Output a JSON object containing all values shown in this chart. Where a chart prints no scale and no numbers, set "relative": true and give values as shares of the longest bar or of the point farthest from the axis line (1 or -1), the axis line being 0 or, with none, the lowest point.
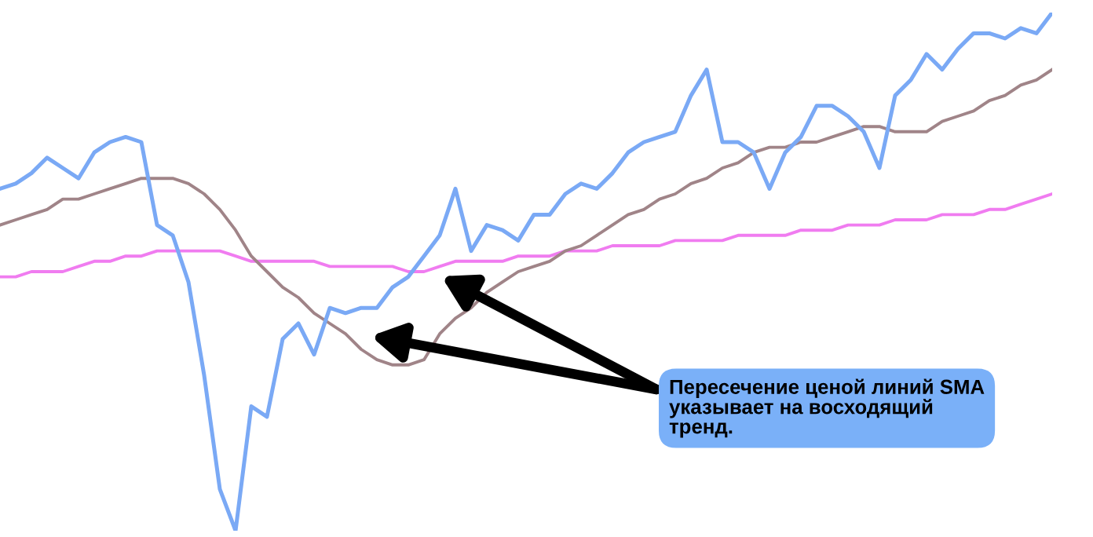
{
  "chart_data": {
    "type": "line",
    "relative": true,
    "categories": [
      null,
      null,
      null,
      null,
      null,
      null,
      null,
      null,
      null,
      null,
      null,
      null,
      null,
      null,
      null,
      null,
      null,
      null,
      null,
      null,
      null,
      null,
      null,
      null,
      null,
      null,
      null,
      null,
      null,
      null,
      null,
      null,
      null,
      null,
      null,
      null,
      null,
      null,
      null,
      null,
      null,
      null,
      null,
      null,
      null,
      null,
      null,
      null,
      null,
      null,
      null,
      null,
      null,
      null,
      null,
      null,
      null,
      null,
      null,
      null,
      null,
      null,
      null,
      null,
      null,
      null,
      null,
      null
    ],
    "series": [
      {
        "color": "#7aa9f5",
        "values": [
          0.66,
          0.67,
          0.69,
          0.72,
          0.7,
          0.68,
          0.73,
          0.75,
          0.76,
          0.75,
          0.59,
          0.57,
          0.48,
          0.3,
          0.08,
          0,
          0.24,
          0.22,
          0.37,
          0.4,
          0.34,
          0.43,
          0.42,
          0.43,
          0.43,
          0.47,
          0.49,
          0.53,
          0.57,
          0.66,
          0.54,
          0.59,
          0.58,
          0.56,
          0.61,
          0.61,
          0.65,
          0.67,
          0.66,
          0.69,
          0.73,
          0.75,
          0.76,
          0.77,
          0.84,
          0.89,
          0.75,
          0.75,
          0.73,
          0.66,
          0.73,
          0.76,
          0.82,
          0.82,
          0.8,
          0.77,
          0.7,
          0.84,
          0.87,
          0.92,
          0.89,
          0.93,
          0.96,
          0.96,
          0.95,
          0.97,
          0.96,
          1
        ]
      },
      {
        "color": "#a08488",
        "values": [
          0.59,
          0.6,
          0.61,
          0.62,
          0.64,
          0.64,
          0.65,
          0.66,
          0.67,
          0.68,
          0.68,
          0.68,
          0.67,
          0.65,
          0.62,
          0.58,
          0.53,
          0.5,
          0.47,
          0.45,
          0.42,
          0.4,
          0.38,
          0.35,
          0.33,
          0.32,
          0.32,
          0.33,
          0.38,
          0.41,
          0.43,
          0.46,
          0.48,
          0.5,
          0.51,
          0.52,
          0.54,
          0.55,
          0.57,
          0.59,
          0.61,
          0.62,
          0.64,
          0.65,
          0.67,
          0.68,
          0.7,
          0.71,
          0.73,
          0.74,
          0.74,
          0.75,
          0.75,
          0.76,
          0.77,
          0.78,
          0.78,
          0.77,
          0.77,
          0.77,
          0.79,
          0.8,
          0.81,
          0.83,
          0.84,
          0.86,
          0.87,
          0.89
        ]
      },
      {
        "color": "#f07cf0",
        "values": [
          0.49,
          0.49,
          0.5,
          0.5,
          0.5,
          0.51,
          0.52,
          0.52,
          0.53,
          0.53,
          0.54,
          0.54,
          0.54,
          0.54,
          0.54,
          0.53,
          0.52,
          0.52,
          0.52,
          0.52,
          0.52,
          0.51,
          0.51,
          0.51,
          0.51,
          0.51,
          0.5,
          0.5,
          0.51,
          0.52,
          0.52,
          0.52,
          0.52,
          0.53,
          0.53,
          0.53,
          0.54,
          0.54,
          0.54,
          0.55,
          0.55,
          0.55,
          0.55,
          0.56,
          0.56,
          0.56,
          0.56,
          0.57,
          0.57,
          0.57,
          0.57,
          0.58,
          0.58,
          0.58,
          0.59,
          0.59,
          0.59,
          0.6,
          0.6,
          0.6,
          0.61,
          0.61,
          0.61,
          0.62,
          0.62,
          0.63,
          0.64,
          0.65
        ]
      }
    ],
    "annotations": [
      "Пересечение ценой линий SMA\nуказывает на восходящий\nтренд."
    ]
  }
}
